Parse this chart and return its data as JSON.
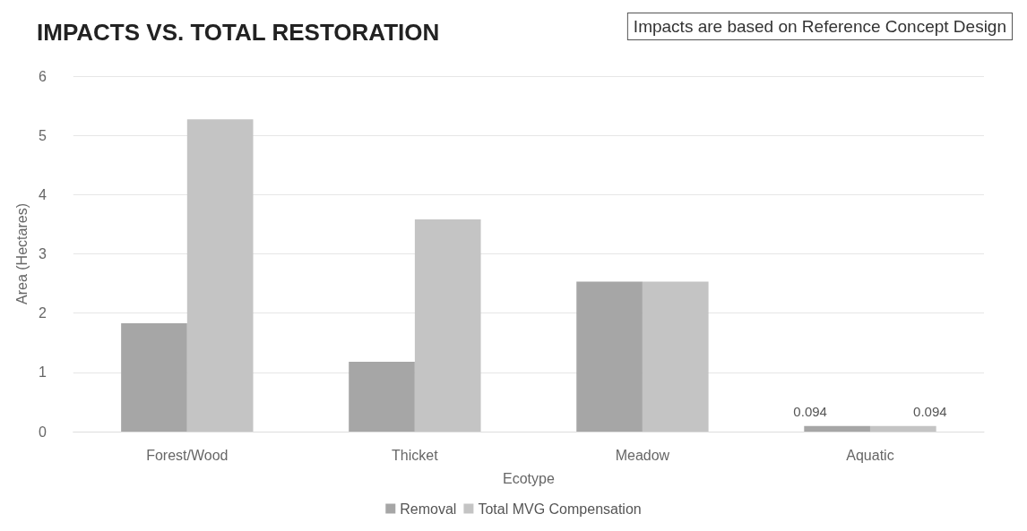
{
  "chart_data": {
    "type": "bar",
    "title": "IMPACTS VS. TOTAL RESTORATION",
    "annotations": [
      "Impacts are based on Reference Concept Design"
    ],
    "xlabel": "Ecotype",
    "ylabel": "Area (Hectares)",
    "categories": [
      "Forest/Wood",
      "Thicket",
      "Meadow",
      "Aquatic"
    ],
    "series": [
      {
        "name": "Removal",
        "color": "#a6a6a6",
        "values": [
          1.83,
          1.18,
          2.53,
          0.094
        ],
        "value_labels": [
          null,
          null,
          null,
          "0.094"
        ]
      },
      {
        "name": "Total MVG Compensation",
        "color": "#c4c4c4",
        "values": [
          5.27,
          3.58,
          2.53,
          0.094
        ],
        "value_labels": [
          null,
          null,
          null,
          "0.094"
        ]
      }
    ],
    "ylim": [
      0,
      6
    ],
    "yticks": [
      0,
      1,
      2,
      3,
      4,
      5,
      6
    ],
    "grid": "y",
    "legend": "bottom"
  }
}
